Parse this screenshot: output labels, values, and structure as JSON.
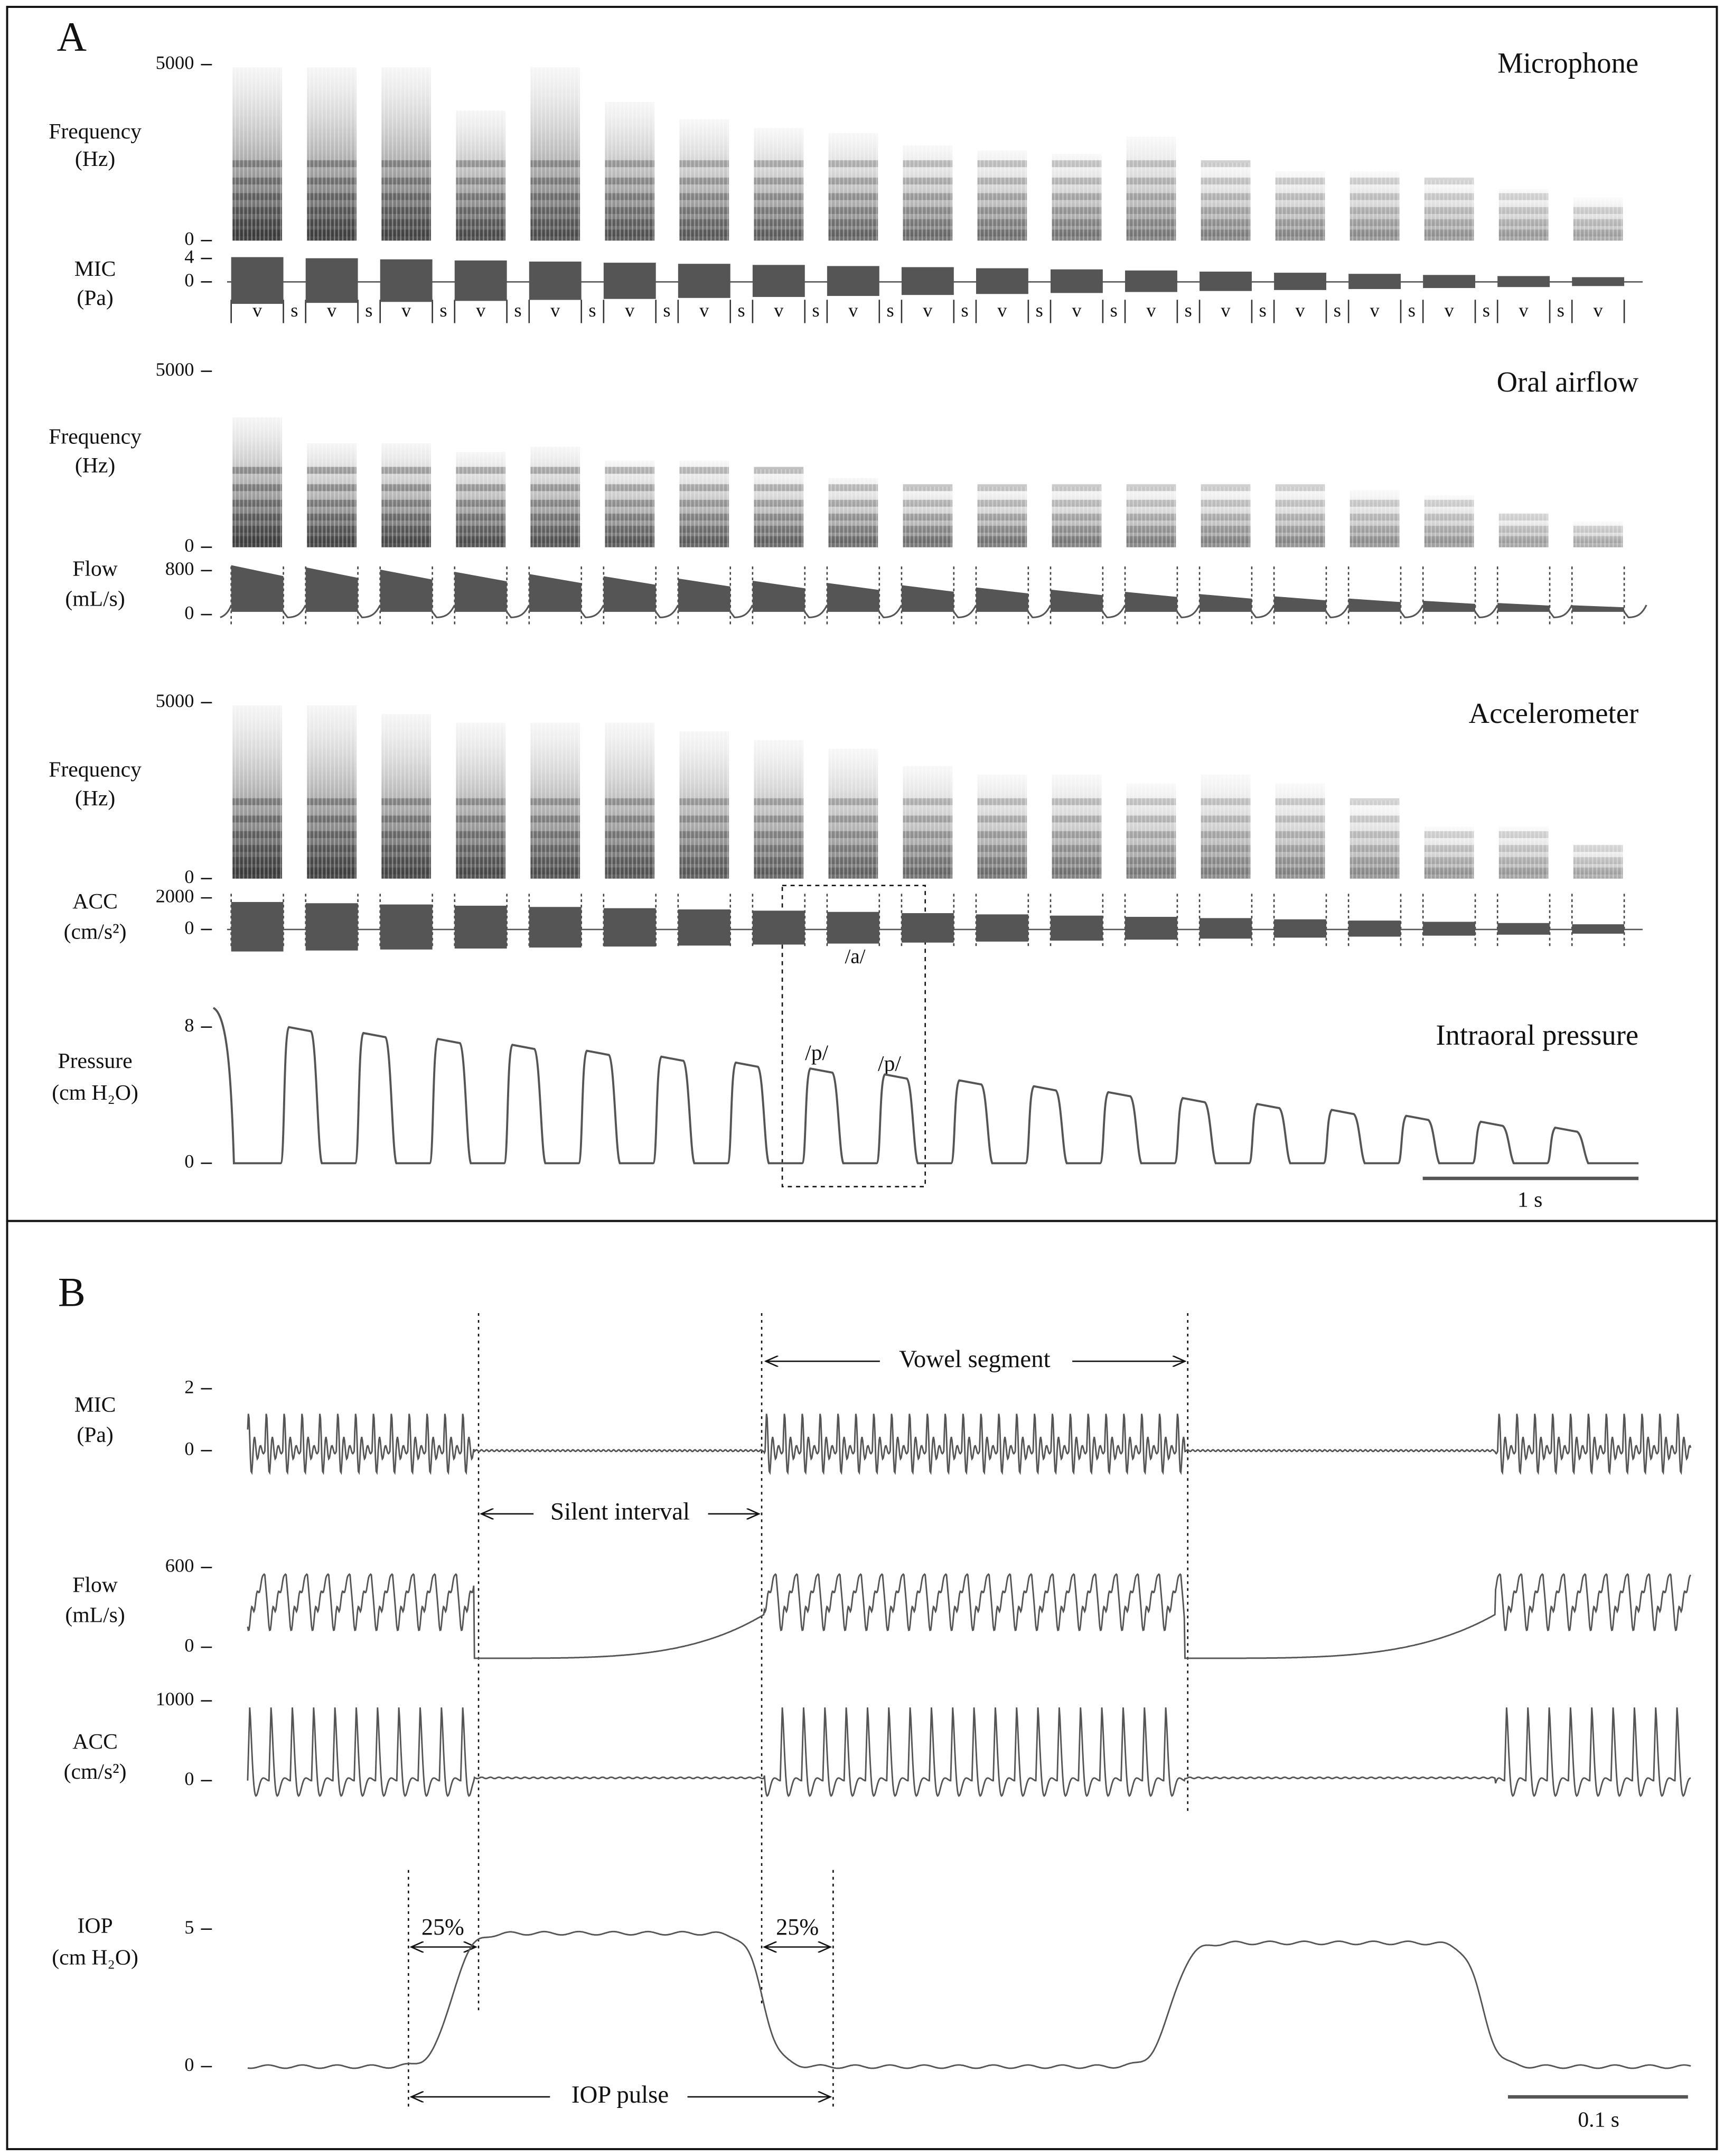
{
  "panel_a": {
    "label": "A",
    "spectrograms": [
      {
        "title": "Microphone",
        "y_label": [
          "Frequency",
          "(Hz)"
        ],
        "yticks": [
          0,
          5000
        ]
      },
      {
        "title": "Oral airflow",
        "y_label": [
          "Frequency",
          "(Hz)"
        ],
        "yticks": [
          0,
          5000
        ]
      },
      {
        "title": "Accelerometer",
        "y_label": [
          "Frequency",
          "(Hz)"
        ],
        "yticks": [
          0,
          5000
        ]
      }
    ],
    "traces": [
      {
        "y_label": [
          "MIC",
          "(Pa)"
        ],
        "yticks": [
          0,
          4
        ]
      },
      {
        "y_label": [
          "Flow",
          "(mL/s)"
        ],
        "yticks": [
          0,
          800
        ]
      },
      {
        "y_label": [
          "ACC",
          "(cm/s²)"
        ],
        "yticks": [
          0,
          2000
        ]
      },
      {
        "title": "Intraoral pressure",
        "y_label": [
          "Pressure",
          "(cm H₂O)"
        ],
        "yticks": [
          0,
          8
        ]
      }
    ],
    "segment_labels": [
      "v",
      "s",
      "v",
      "s",
      "v",
      "s",
      "v",
      "s",
      "v",
      "s",
      "v",
      "s",
      "v",
      "s",
      "v",
      "s",
      "v",
      "s",
      "v",
      "s",
      "v",
      "s",
      "v",
      "s",
      "v",
      "s",
      "v",
      "s",
      "v",
      "s",
      "v",
      "s",
      "v",
      "s",
      "v",
      "s",
      "v"
    ],
    "annotations": {
      "vowel": "/a/",
      "consonants": [
        "/p/",
        "/p/"
      ]
    },
    "scale_bar": "1 s"
  },
  "panel_b": {
    "label": "B",
    "traces": [
      {
        "y_label": [
          "MIC",
          "(Pa)"
        ],
        "yticks": [
          0,
          2
        ]
      },
      {
        "y_label": [
          "Flow",
          "(mL/s)"
        ],
        "yticks": [
          0,
          600
        ]
      },
      {
        "y_label": [
          "ACC",
          "(cm/s²)"
        ],
        "yticks": [
          0,
          1000
        ]
      },
      {
        "y_label": [
          "IOP",
          "(cm H₂O)"
        ],
        "yticks": [
          0,
          5
        ]
      }
    ],
    "annotations": {
      "vowel_segment": "Vowel segment",
      "silent_interval": "Silent interval",
      "onset_threshold": "25%",
      "offset_threshold": "25%",
      "iop_pulse": "IOP pulse"
    },
    "scale_bar": "0.1 s"
  }
}
